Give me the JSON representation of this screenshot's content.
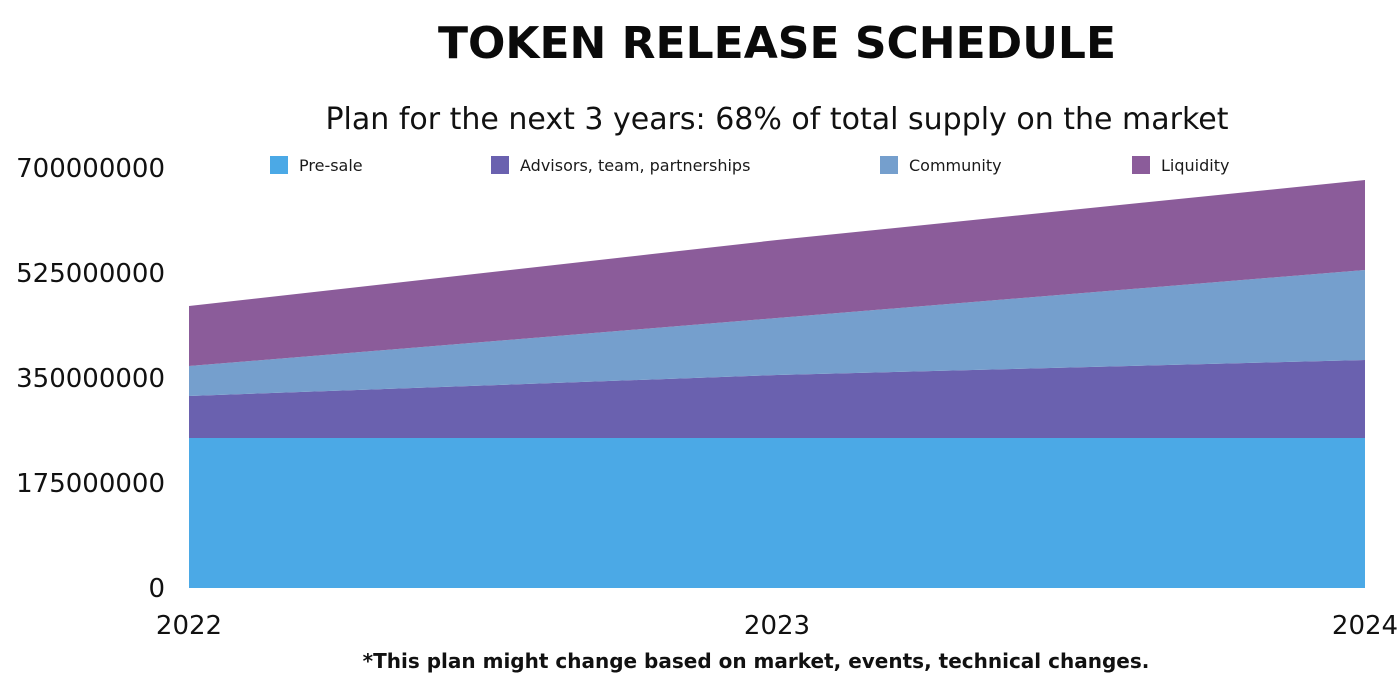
{
  "chart_data": {
    "type": "area",
    "stacked": true,
    "title": "TOKEN RELEASE SCHEDULE",
    "subtitle": "Plan for the next 3 years: 68% of total supply on the market",
    "footnote": "*This plan might change based on market, events, technical changes.",
    "x": [
      "2022",
      "2023",
      "2024"
    ],
    "ylim": [
      0,
      700000000
    ],
    "yticks": [
      "0",
      "175000000",
      "350000000",
      "525000000",
      "700000000"
    ],
    "ytick_values": [
      0,
      175000000,
      350000000,
      525000000,
      700000000
    ],
    "legend_position": "top",
    "grid": false,
    "series": [
      {
        "name": "Pre-sale",
        "color": "#4BA9E6",
        "values": [
          250000000,
          250000000,
          250000000
        ]
      },
      {
        "name": "Advisors, team, partnerships",
        "color": "#6A61AF",
        "values": [
          70000000,
          105000000,
          130000000
        ]
      },
      {
        "name": "Community",
        "color": "#759FCD",
        "values": [
          50000000,
          95000000,
          150000000
        ]
      },
      {
        "name": "Liquidity",
        "color": "#8B5C9A",
        "values": [
          100000000,
          130000000,
          150000000
        ]
      }
    ]
  }
}
